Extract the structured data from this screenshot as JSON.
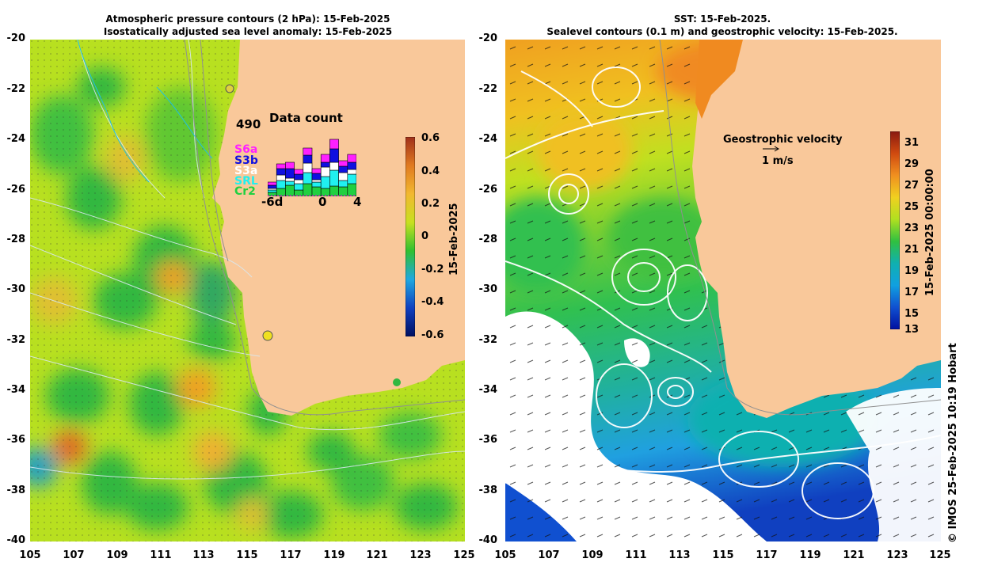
{
  "left_panel": {
    "title_line1": "Atmospheric pressure contours (2 hPa): 15-Feb-2025",
    "title_line2": "Isostatically adjusted sea level anomaly: 15-Feb-2025",
    "y_ticks": [
      "-20",
      "-22",
      "-24",
      "-26",
      "-28",
      "-30",
      "-32",
      "-34",
      "-36",
      "-38",
      "-40"
    ],
    "x_ticks": [
      "105",
      "107",
      "109",
      "111",
      "113",
      "115",
      "117",
      "119",
      "121",
      "123",
      "125"
    ],
    "colorbar": {
      "ticks": [
        "0.6",
        "0.4",
        "0.2",
        "0",
        "-0.2",
        "-0.4",
        "-0.6"
      ],
      "date_label": "15-Feb-2025",
      "colors": [
        "#a0301a",
        "#e07a20",
        "#f2b830",
        "#c8e020",
        "#30c030",
        "#20a8e0",
        "#1040c0",
        "#001060"
      ]
    },
    "data_count": {
      "title": "Data count",
      "max_label": "490",
      "x_labels": [
        "-6d",
        "0",
        "4"
      ],
      "legend": [
        {
          "label": "S6a",
          "color": "#ff20ff"
        },
        {
          "label": "S3b",
          "color": "#1010e0"
        },
        {
          "label": "S3a",
          "color": "#ffffff"
        },
        {
          "label": "SRL",
          "color": "#20f0f0"
        },
        {
          "label": "Cr2",
          "color": "#20d040"
        }
      ],
      "bars": [
        {
          "Cr2": 5,
          "SRL": 3,
          "S3a": 2,
          "S3b": 4,
          "S6a": 4
        },
        {
          "Cr2": 10,
          "SRL": 10,
          "S3a": 7,
          "S3b": 8,
          "S6a": 6
        },
        {
          "Cr2": 14,
          "SRL": 5,
          "S3a": 4,
          "S3b": 12,
          "S6a": 8
        },
        {
          "Cr2": 8,
          "SRL": 8,
          "S3a": 5,
          "S3b": 7,
          "S6a": 6
        },
        {
          "Cr2": 16,
          "SRL": 14,
          "S3a": 12,
          "S3b": 10,
          "S6a": 9
        },
        {
          "Cr2": 12,
          "SRL": 6,
          "S3a": 3,
          "S3b": 8,
          "S6a": 6
        },
        {
          "Cr2": 10,
          "SRL": 15,
          "S3a": 12,
          "S3b": 6,
          "S6a": 10
        },
        {
          "Cr2": 13,
          "SRL": 20,
          "S3a": 10,
          "S3b": 17,
          "S6a": 12
        },
        {
          "Cr2": 12,
          "SRL": 8,
          "S3a": 10,
          "S3b": 8,
          "S6a": 7
        },
        {
          "Cr2": 16,
          "SRL": 12,
          "S3a": 6,
          "S3b": 9,
          "S6a": 10
        }
      ],
      "bar_max": 90
    }
  },
  "right_panel": {
    "title_line1": "SST: 15-Feb-2025.",
    "title_line2": "Sealevel contours (0.1 m) and geostrophic velocity: 15-Feb-2025.",
    "y_ticks": [
      "-20",
      "-22",
      "-24",
      "-26",
      "-28",
      "-30",
      "-32",
      "-34",
      "-36",
      "-38",
      "-40"
    ],
    "x_ticks": [
      "105",
      "107",
      "109",
      "111",
      "113",
      "115",
      "117",
      "119",
      "121",
      "123",
      "125"
    ],
    "velocity_label": "Geostrophic velocity",
    "velocity_scale": "1 m/s",
    "colorbar": {
      "ticks": [
        "31",
        "29",
        "27",
        "25",
        "23",
        "21",
        "19",
        "17",
        "15",
        "13"
      ],
      "date_label": "15-Feb-2025 00:00:00",
      "colors": [
        "#8a1a10",
        "#d04a10",
        "#f09020",
        "#f0d020",
        "#b0e020",
        "#30c040",
        "#10b0b0",
        "#10a0e0",
        "#1050d0",
        "#0010a0"
      ]
    }
  },
  "credit": "© IMOS 25-Feb-2025 10:19 Hobart",
  "colors": {
    "land": "#f9c89a",
    "no_data": "#ffffff"
  }
}
